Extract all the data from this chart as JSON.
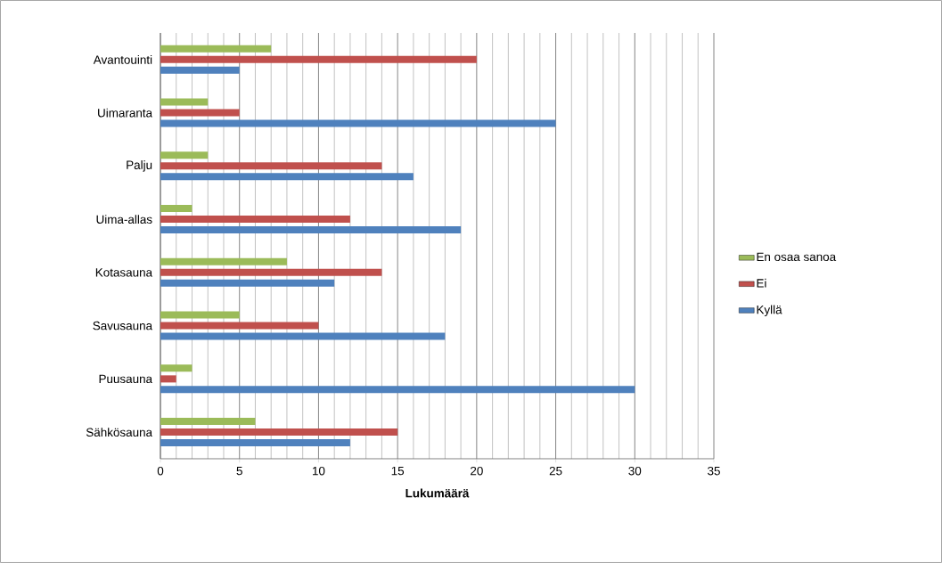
{
  "chart_data": {
    "type": "bar",
    "orientation": "horizontal",
    "xlabel": "Lukumäärä",
    "categories": [
      "Avantouinti",
      "Uimaranta",
      "Palju",
      "Uima-allas",
      "Kotasauna",
      "Savusauna",
      "Puusauna",
      "Sähkösauna"
    ],
    "series": [
      {
        "name": "Kyllä",
        "color": "#4f81bd",
        "values": [
          5,
          25,
          16,
          19,
          11,
          18,
          30,
          12
        ]
      },
      {
        "name": "Ei",
        "color": "#c0504d",
        "values": [
          20,
          5,
          14,
          12,
          14,
          10,
          1,
          15
        ]
      },
      {
        "name": "En osaa sanoa",
        "color": "#9bbb59",
        "values": [
          7,
          3,
          3,
          2,
          8,
          5,
          2,
          6
        ]
      }
    ],
    "xlim": [
      0,
      35
    ],
    "xticks": [
      0,
      5,
      10,
      15,
      20,
      25,
      30,
      35
    ],
    "grid": "x",
    "legend": "right"
  }
}
